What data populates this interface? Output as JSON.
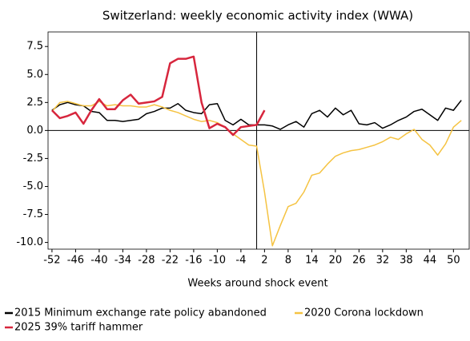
{
  "chart_data": {
    "type": "line",
    "title": "Switzerland: weekly economic activity index (WWA)",
    "x_label": "Weeks around shock event",
    "x": [
      -52,
      -50,
      -48,
      -46,
      -44,
      -42,
      -40,
      -38,
      -36,
      -34,
      -32,
      -30,
      -28,
      -26,
      -24,
      -22,
      -20,
      -18,
      -16,
      -14,
      -12,
      -10,
      -8,
      -6,
      -4,
      -2,
      0,
      2,
      4,
      6,
      8,
      10,
      12,
      14,
      16,
      18,
      20,
      22,
      24,
      26,
      28,
      30,
      32,
      34,
      36,
      38,
      40,
      42,
      44,
      46,
      48,
      50,
      52
    ],
    "xlim": [
      -53,
      54
    ],
    "xticks": [
      -52,
      -46,
      -40,
      -34,
      -28,
      -22,
      -16,
      -10,
      -4,
      2,
      8,
      14,
      20,
      26,
      32,
      38,
      44,
      50
    ],
    "ylim": [
      -10.6,
      8.8
    ],
    "yticks": [
      {
        "value": 7.5,
        "label": "7.5"
      },
      {
        "value": 5,
        "label": "5.0"
      },
      {
        "value": 2.5,
        "label": "2.5"
      },
      {
        "value": 0,
        "label": "0.0"
      },
      {
        "value": -2.5,
        "label": "-2.5"
      },
      {
        "value": -5,
        "label": "-5.0"
      },
      {
        "value": -7.5,
        "label": "-7.5"
      },
      {
        "value": -10,
        "label": "-10.0"
      }
    ],
    "series": [
      {
        "name": "2015 Minimum exchange rate policy abandoned",
        "color": "#000000",
        "values": [
          1.8,
          2.3,
          2.5,
          2.3,
          2.2,
          1.7,
          1.6,
          0.9,
          0.9,
          0.8,
          0.9,
          1.0,
          1.5,
          1.7,
          2.0,
          2.0,
          2.4,
          1.8,
          1.6,
          1.5,
          2.3,
          2.4,
          0.9,
          0.5,
          1.0,
          0.5,
          0.5,
          0.5,
          0.4,
          0.1,
          0.5,
          0.8,
          0.3,
          1.5,
          1.8,
          1.2,
          2.0,
          1.4,
          1.8,
          0.6,
          0.5,
          0.7,
          0.2,
          0.5,
          0.9,
          1.2,
          1.7,
          1.9,
          1.4,
          0.9,
          2.0,
          1.8,
          2.7
        ]
      },
      {
        "name": "2020 Corona lockdown",
        "color": "#f5c342",
        "values": [
          1.7,
          2.5,
          2.6,
          2.4,
          2.2,
          2.2,
          2.6,
          2.2,
          2.3,
          2.2,
          2.2,
          2.1,
          2.1,
          2.3,
          2.1,
          1.8,
          1.6,
          1.3,
          1.0,
          0.8,
          0.9,
          0.7,
          0.3,
          -0.3,
          -0.8,
          -1.3,
          -1.4,
          -5.5,
          -10.3,
          -8.5,
          -6.8,
          -6.5,
          -5.5,
          -4.0,
          -3.8,
          -3.0,
          -2.3,
          -2.0,
          -1.8,
          -1.7,
          -1.5,
          -1.3,
          -1.0,
          -0.6,
          -0.8,
          -0.3,
          0.1,
          -0.8,
          -1.3,
          -2.2,
          -1.2,
          0.3,
          0.9
        ]
      },
      {
        "name": "2025 39% tariff hammer",
        "color": "#d7263d",
        "values": [
          1.8,
          1.1,
          1.3,
          1.6,
          0.6,
          1.8,
          2.8,
          1.9,
          1.9,
          2.7,
          3.2,
          2.4,
          2.5,
          2.6,
          3.0,
          6.0,
          6.4,
          6.4,
          6.6,
          2.5,
          0.2,
          0.6,
          0.3,
          -0.4,
          0.3,
          0.4,
          0.5,
          1.8,
          null,
          null,
          null,
          null,
          null,
          null,
          null,
          null,
          null,
          null,
          null,
          null,
          null,
          null,
          null,
          null,
          null,
          null,
          null,
          null,
          null,
          null,
          null,
          null,
          null
        ]
      }
    ]
  }
}
